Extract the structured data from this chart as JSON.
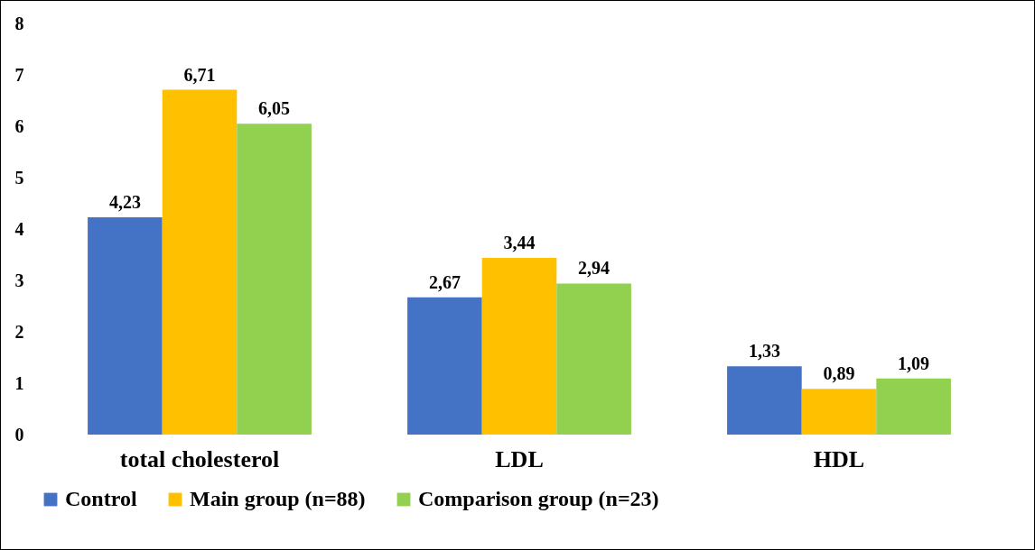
{
  "chart_data": {
    "type": "bar",
    "categories": [
      "total cholesterol",
      "LDL",
      "HDL"
    ],
    "series": [
      {
        "name": "Control",
        "color": "#4472c4",
        "values": [
          4.23,
          2.67,
          1.33
        ],
        "value_labels": [
          "4,23",
          "2,67",
          "1,33"
        ]
      },
      {
        "name": "Main group (n=88)",
        "color": "#ffc000",
        "values": [
          6.71,
          3.44,
          0.89
        ],
        "value_labels": [
          "6,71",
          "3,44",
          "0,89"
        ]
      },
      {
        "name": "Comparison group (n=23)",
        "color": "#92d050",
        "values": [
          6.05,
          2.94,
          1.09
        ],
        "value_labels": [
          "6,05",
          "2,94",
          "1,09"
        ]
      }
    ],
    "ylim": [
      0,
      8
    ],
    "yticks": [
      0,
      1,
      2,
      3,
      4,
      5,
      6,
      7,
      8
    ],
    "grid": false,
    "legend": "bottom"
  }
}
